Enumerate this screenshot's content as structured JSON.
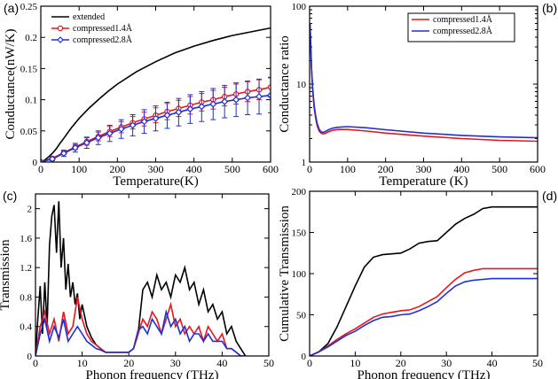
{
  "colors": {
    "black": "#000000",
    "red": "#e8141e",
    "blue": "#1f2fd6"
  },
  "chart_data": [
    {
      "panel": "(a)",
      "type": "line",
      "xlabel": "Temperature(K)",
      "ylabel": "Conductance(nW/K)",
      "xlim": [
        0,
        600
      ],
      "ylim": [
        0,
        0.25
      ],
      "xticks": [
        "0",
        "100",
        "200",
        "300",
        "400",
        "500",
        "600"
      ],
      "yticks": [
        "0",
        "0.05",
        "0.1",
        "0.15",
        "0.2",
        "0.25"
      ],
      "legend": "top-left",
      "series": [
        {
          "name": "extended",
          "color": "#000000",
          "x": [
            0,
            10,
            20,
            30,
            40,
            50,
            60,
            80,
            100,
            125,
            150,
            175,
            200,
            250,
            300,
            350,
            400,
            450,
            500,
            550,
            600
          ],
          "y": [
            0,
            0.003,
            0.008,
            0.014,
            0.021,
            0.03,
            0.038,
            0.055,
            0.07,
            0.086,
            0.1,
            0.113,
            0.125,
            0.145,
            0.161,
            0.175,
            0.186,
            0.195,
            0.203,
            0.209,
            0.215
          ]
        },
        {
          "name": "compressed1.4Å",
          "color": "#e8141e",
          "marker": "circle",
          "x": [
            0,
            30,
            60,
            90,
            120,
            150,
            180,
            210,
            240,
            270,
            300,
            330,
            360,
            390,
            420,
            450,
            480,
            510,
            540,
            570,
            600
          ],
          "y": [
            0,
            0.006,
            0.015,
            0.024,
            0.033,
            0.041,
            0.049,
            0.056,
            0.063,
            0.069,
            0.075,
            0.081,
            0.086,
            0.091,
            0.096,
            0.1,
            0.105,
            0.109,
            0.113,
            0.116,
            0.12
          ],
          "err": [
            0,
            0.002,
            0.003,
            0.004,
            0.006,
            0.007,
            0.008,
            0.009,
            0.01,
            0.011,
            0.012,
            0.013,
            0.013,
            0.014,
            0.014,
            0.015,
            0.015,
            0.016,
            0.016,
            0.016,
            0.016
          ]
        },
        {
          "name": "compressed2.8Å",
          "color": "#1f2fd6",
          "marker": "diamond",
          "x": [
            0,
            30,
            60,
            90,
            120,
            150,
            180,
            210,
            240,
            270,
            300,
            330,
            360,
            390,
            420,
            450,
            480,
            510,
            540,
            570,
            600
          ],
          "y": [
            0,
            0.005,
            0.014,
            0.023,
            0.031,
            0.039,
            0.046,
            0.053,
            0.059,
            0.065,
            0.07,
            0.075,
            0.08,
            0.085,
            0.089,
            0.093,
            0.097,
            0.1,
            0.103,
            0.105,
            0.107
          ],
          "err": [
            0,
            0.003,
            0.005,
            0.007,
            0.009,
            0.011,
            0.013,
            0.015,
            0.017,
            0.019,
            0.02,
            0.021,
            0.022,
            0.023,
            0.024,
            0.025,
            0.026,
            0.027,
            0.027,
            0.028,
            0.028
          ]
        }
      ]
    },
    {
      "panel": "(b)",
      "type": "line",
      "xlabel": "Temperature (K)",
      "ylabel": "Conductance ratio",
      "xlim": [
        0,
        600
      ],
      "ylim": [
        1,
        100
      ],
      "yscale": "log",
      "xticks": [
        "0",
        "100",
        "200",
        "300",
        "400",
        "500",
        "600"
      ],
      "yticks": [
        "1",
        "10",
        "100"
      ],
      "legend": "top-right",
      "series": [
        {
          "name": "compressed1.4Å",
          "color": "#e8141e",
          "x": [
            1,
            3,
            5,
            8,
            12,
            16,
            20,
            25,
            30,
            35,
            40,
            50,
            60,
            75,
            100,
            150,
            200,
            300,
            400,
            500,
            600
          ],
          "y": [
            60,
            30,
            16,
            8.5,
            5,
            3.6,
            2.9,
            2.5,
            2.35,
            2.3,
            2.32,
            2.45,
            2.55,
            2.62,
            2.62,
            2.5,
            2.35,
            2.15,
            2.0,
            1.9,
            1.85
          ]
        },
        {
          "name": "compressed2.8Å",
          "color": "#1f2fd6",
          "x": [
            1,
            3,
            5,
            8,
            12,
            16,
            20,
            25,
            30,
            35,
            40,
            50,
            60,
            75,
            100,
            150,
            200,
            300,
            400,
            500,
            600
          ],
          "y": [
            60,
            32,
            17,
            9,
            5.4,
            3.9,
            3.1,
            2.65,
            2.45,
            2.4,
            2.45,
            2.6,
            2.72,
            2.8,
            2.85,
            2.75,
            2.6,
            2.35,
            2.2,
            2.1,
            2.05
          ]
        }
      ]
    },
    {
      "panel": "(c)",
      "type": "line",
      "xlabel": "Phonon frequency (THz)",
      "ylabel": "Transmission",
      "xlim": [
        0,
        50
      ],
      "ylim": [
        0,
        2.2
      ],
      "xticks": [
        "0",
        "10",
        "20",
        "30",
        "40",
        "50"
      ],
      "yticks": [
        "0",
        "0.4",
        "0.8",
        "1.2",
        "1.6",
        "2"
      ],
      "series": [
        {
          "name": "",
          "color": "#000000",
          "x": [
            0,
            0.5,
            1,
            1.5,
            2,
            2.5,
            3,
            3.5,
            4,
            4.5,
            5,
            5.5,
            6,
            6.5,
            7,
            7.5,
            8,
            8.5,
            9,
            9.5,
            10,
            11,
            12,
            13,
            14,
            15,
            16,
            17,
            18,
            19,
            20,
            21,
            22,
            23,
            24,
            25,
            26,
            27,
            28,
            29,
            30,
            31,
            32,
            33,
            34,
            35,
            36,
            37,
            38,
            39,
            40,
            41,
            42,
            43,
            44,
            45
          ],
          "y": [
            0,
            0.5,
            0.95,
            0.3,
            1.0,
            0.4,
            1.5,
            1.9,
            2.05,
            1.4,
            2.1,
            1.2,
            1.6,
            0.9,
            1.25,
            0.8,
            1.0,
            0.7,
            0.85,
            0.5,
            0.7,
            0.4,
            0.25,
            0.15,
            0.1,
            0.05,
            0.05,
            0.05,
            0.05,
            0.05,
            0.05,
            0.1,
            0.3,
            0.9,
            1.0,
            0.8,
            1.1,
            0.9,
            1.0,
            0.8,
            1.1,
            1.0,
            1.2,
            0.9,
            1.0,
            0.7,
            0.9,
            0.6,
            0.7,
            0.5,
            0.6,
            0.3,
            0.4,
            0.2,
            0.1,
            0
          ]
        },
        {
          "name": "",
          "color": "#e8141e",
          "x": [
            0,
            1,
            2,
            3,
            4,
            5,
            6,
            7,
            8,
            9,
            10,
            11,
            12,
            13,
            14,
            15,
            16,
            17,
            18,
            19,
            20,
            21,
            22,
            23,
            24,
            25,
            26,
            27,
            28,
            29,
            30,
            31,
            32,
            33,
            34,
            35,
            36,
            37,
            38,
            39,
            40,
            41,
            42,
            43,
            44,
            45
          ],
          "y": [
            0,
            0.4,
            0.6,
            0.3,
            0.5,
            0.2,
            0.6,
            0.3,
            0.4,
            0.8,
            0.5,
            0.3,
            0.2,
            0.15,
            0.1,
            0.05,
            0.05,
            0.05,
            0.05,
            0.05,
            0.05,
            0.1,
            0.3,
            0.5,
            0.4,
            0.6,
            0.5,
            0.3,
            0.5,
            0.7,
            0.4,
            0.5,
            0.3,
            0.4,
            0.3,
            0.4,
            0.2,
            0.4,
            0.3,
            0.2,
            0.3,
            0.1,
            0.1,
            0.05,
            0,
            0
          ]
        },
        {
          "name": "",
          "color": "#1f2fd6",
          "x": [
            0,
            1,
            2,
            3,
            4,
            5,
            6,
            7,
            8,
            9,
            10,
            11,
            12,
            13,
            14,
            15,
            16,
            17,
            18,
            19,
            20,
            21,
            22,
            23,
            24,
            25,
            26,
            27,
            28,
            29,
            30,
            31,
            32,
            33,
            34,
            35,
            36,
            37,
            38,
            39,
            40,
            41,
            42,
            43,
            44,
            45
          ],
          "y": [
            0,
            0.3,
            0.5,
            0.2,
            0.4,
            0.25,
            0.5,
            0.2,
            0.3,
            0.4,
            0.3,
            0.2,
            0.15,
            0.1,
            0.08,
            0.05,
            0.05,
            0.05,
            0.05,
            0.05,
            0.05,
            0.1,
            0.35,
            0.4,
            0.3,
            0.5,
            0.4,
            0.3,
            0.6,
            0.4,
            0.5,
            0.3,
            0.4,
            0.2,
            0.3,
            0.3,
            0.2,
            0.3,
            0.2,
            0.2,
            0.2,
            0.1,
            0.1,
            0.05,
            0,
            0
          ]
        }
      ]
    },
    {
      "panel": "(d)",
      "type": "line",
      "xlabel": "Phonon frequency (THz)",
      "ylabel": "Cumulative Transmission",
      "xlim": [
        0,
        50
      ],
      "ylim": [
        0,
        200
      ],
      "xticks": [
        "0",
        "10",
        "20",
        "30",
        "40",
        "50"
      ],
      "yticks": [
        "0",
        "50",
        "100",
        "150",
        "200"
      ],
      "series": [
        {
          "name": "",
          "color": "#000000",
          "x": [
            0,
            2,
            4,
            6,
            8,
            10,
            12,
            14,
            16,
            18,
            20,
            22,
            24,
            26,
            28,
            30,
            32,
            34,
            36,
            38,
            40,
            45,
            50
          ],
          "y": [
            0,
            5,
            15,
            35,
            60,
            85,
            108,
            120,
            123,
            124,
            125,
            130,
            137,
            139,
            140,
            150,
            160,
            167,
            172,
            179,
            181,
            181,
            181
          ]
        },
        {
          "name": "",
          "color": "#e8141e",
          "x": [
            0,
            2,
            4,
            6,
            8,
            10,
            12,
            14,
            16,
            18,
            20,
            22,
            24,
            26,
            28,
            30,
            32,
            34,
            36,
            38,
            40,
            45,
            50
          ],
          "y": [
            0,
            5,
            12,
            20,
            27,
            33,
            40,
            47,
            51,
            53,
            55,
            56,
            60,
            66,
            72,
            83,
            93,
            101,
            104,
            106,
            106,
            106,
            106
          ]
        },
        {
          "name": "",
          "color": "#1f2fd6",
          "x": [
            0,
            2,
            4,
            6,
            8,
            10,
            12,
            14,
            16,
            18,
            20,
            22,
            24,
            26,
            28,
            30,
            32,
            34,
            36,
            38,
            40,
            45,
            50
          ],
          "y": [
            0,
            5,
            11,
            18,
            25,
            30,
            37,
            43,
            47,
            48,
            50,
            51,
            55,
            60,
            66,
            76,
            85,
            90,
            92,
            93,
            94,
            94,
            94
          ]
        }
      ]
    }
  ]
}
